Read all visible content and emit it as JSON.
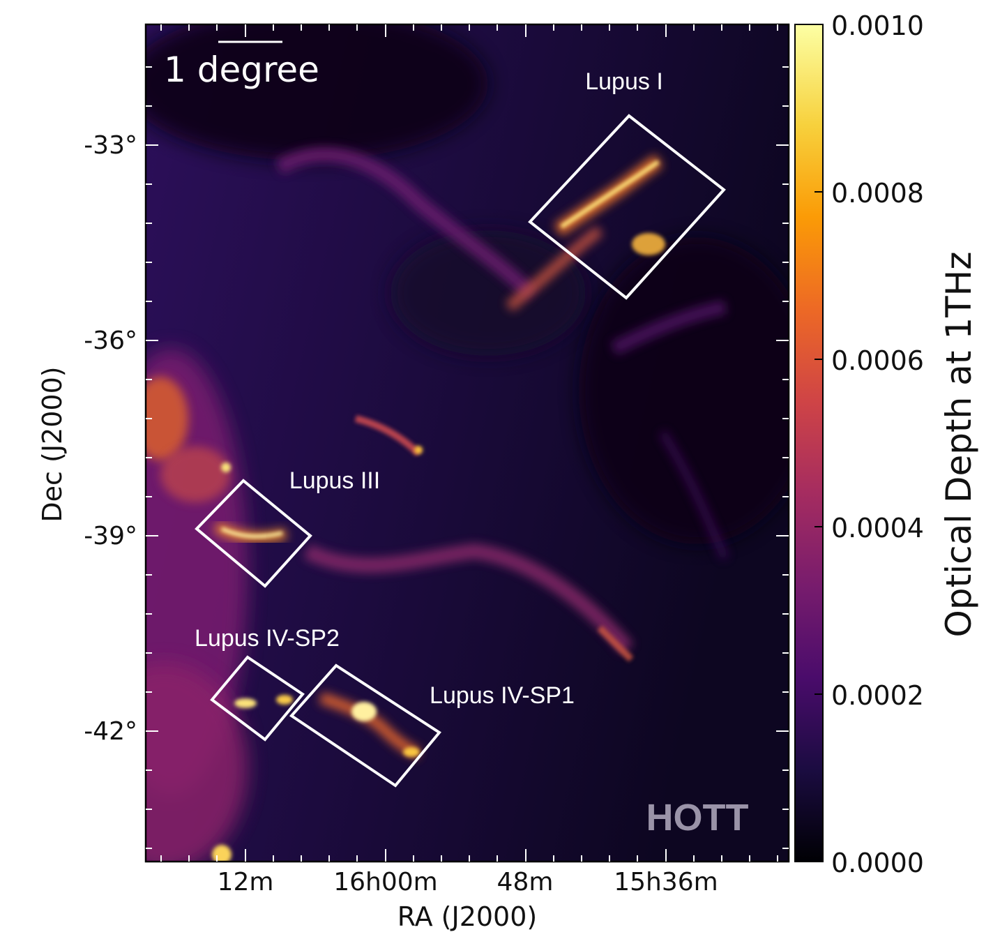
{
  "image": {
    "x_axis_label": "RA (J2000)",
    "y_axis_label": "Dec (J2000)",
    "x_tick_labels": [
      "12m",
      "16h00m",
      "48m",
      "15h36m"
    ],
    "y_tick_labels": [
      "-33°",
      "-36°",
      "-39°",
      "-42°"
    ],
    "scale_bar_label": "1 degree",
    "watermark": "HOTT",
    "colorbar": {
      "label": "Optical Depth at 1THz",
      "tick_labels": [
        "0.0010",
        "0.0008",
        "0.0006",
        "0.0004",
        "0.0002",
        "0.0000"
      ],
      "colormap": "inferno",
      "colors": [
        "#000004",
        "#1b0c41",
        "#4a0c6b",
        "#781c6d",
        "#a52c60",
        "#cf4446",
        "#ed6925",
        "#fb9b06",
        "#f7d13d",
        "#fcffa4"
      ]
    },
    "regions": [
      {
        "label": "Lupus I",
        "box": "outlined"
      },
      {
        "label": "Lupus III",
        "box": "outlined"
      },
      {
        "label": "Lupus IV-SP2",
        "box": "outlined"
      },
      {
        "label": "Lupus IV-SP1",
        "box": "outlined"
      }
    ]
  }
}
